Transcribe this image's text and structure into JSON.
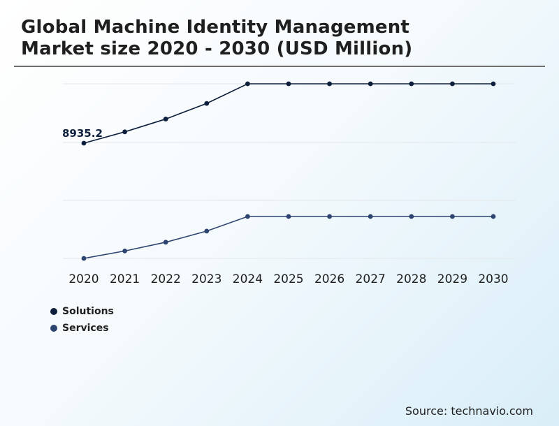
{
  "title": {
    "line1": "Global Machine Identity Management",
    "line2": "Market size 2020 - 2030 (USD Million)"
  },
  "colors": {
    "solutions": "#0d1f3c",
    "services": "#2e4470",
    "grid": "#e3e7ea"
  },
  "legend": [
    {
      "label": "Solutions"
    },
    {
      "label": "Services"
    }
  ],
  "source": "Source: technavio.com",
  "chart_data": {
    "type": "line",
    "title": "Global Machine Identity Management Market size 2020 - 2030 (USD Million)",
    "x": [
      "2020",
      "2021",
      "2022",
      "2023",
      "2024",
      "2025",
      "2026",
      "2027",
      "2028",
      "2029",
      "2030"
    ],
    "grid": true,
    "legend_placement": "bottom-left",
    "annotations": [
      {
        "series": "Solutions",
        "x": "2020",
        "label": "8935.2"
      }
    ],
    "series": [
      {
        "name": "Solutions",
        "values": [
          8935.2,
          9950,
          11100,
          12500,
          14260,
          14260,
          14260,
          14260,
          14260,
          14260,
          14260
        ]
      },
      {
        "name": "Services",
        "values": [
          2000,
          2660,
          3440,
          4430,
          5730,
          5730,
          5730,
          5730,
          5730,
          5730,
          5730
        ]
      }
    ],
    "ylim": [
      2000,
      14260
    ]
  }
}
